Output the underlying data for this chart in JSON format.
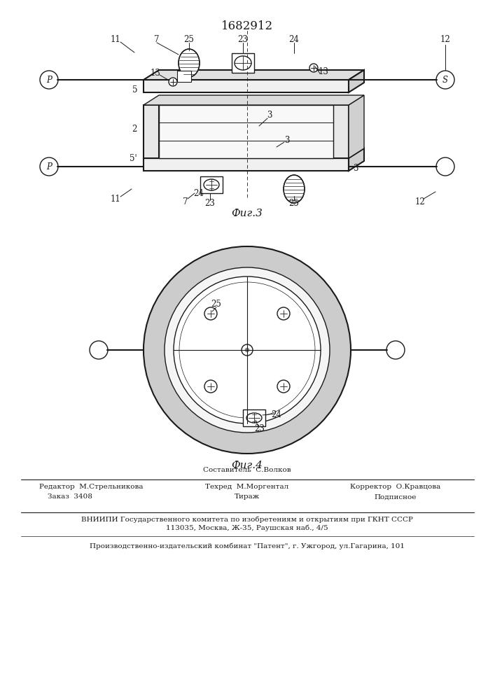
{
  "title": "1682912",
  "fig3_label": "Фиг.3",
  "fig4_label": "Фиг.4",
  "footer_col1_r1": "Составитель  С.Волков",
  "footer_col1_r2": "Редактор  М.Стрельникова",
  "footer_col2_r1": "Техред  М.Моргентал",
  "footer_col2_r2": "Тираж",
  "footer_col3_r1": "Корректор  О.Кравцова",
  "footer_col3_r2": "Подписное",
  "footer_order_label": "Заказ  3408",
  "footer_vniipи": "ВНИИПИ Государственного комитета по изобретениям и открытиям при ГКНТ СССР",
  "footer_address": "113035, Москва, Ж-35, Раушская наб., 4/5",
  "footer_patent": "Производственно-издательский комбинат \"Патент\", г. Ужгород, ул.Гагарина, 101",
  "bg_color": "#ffffff",
  "line_color": "#1a1a1a"
}
